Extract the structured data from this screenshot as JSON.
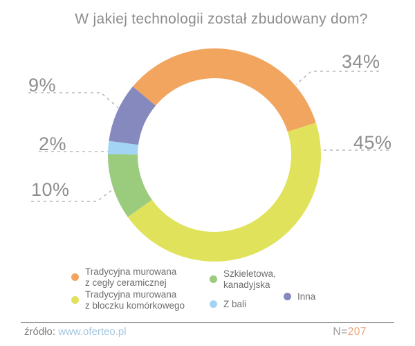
{
  "title": "W jakiej technologii został zbudowany dom?",
  "chart_data": {
    "type": "pie",
    "subtype": "donut",
    "title": "W jakiej technologii został zbudowany dom?",
    "unit": "%",
    "slices": [
      {
        "label": "Tradycyjna murowana z cegły ceramicznej",
        "value": 34,
        "pct_label": "34%",
        "color": "#F2A55E",
        "legend_lines": [
          "Tradycyjna murowana",
          "z cegły ceramicznej"
        ]
      },
      {
        "label": "Tradycyjna murowana z bloczku komórkowego",
        "value": 45,
        "pct_label": "45%",
        "color": "#E0E25B",
        "legend_lines": [
          "Tradycyjna murowana",
          "z bloczku komórkowego"
        ]
      },
      {
        "label": "Szkieletowa, kanadyjska",
        "value": 10,
        "pct_label": "10%",
        "color": "#9BCB7C",
        "legend_lines": [
          "Szkieletowa,",
          "kanadyjska"
        ]
      },
      {
        "label": "Z bali",
        "value": 2,
        "pct_label": "2%",
        "color": "#A3D4F3",
        "legend_lines": [
          "Z bali"
        ]
      },
      {
        "label": "Inna",
        "value": 9,
        "pct_label": "9%",
        "color": "#8689BE",
        "legend_lines": [
          "Inna"
        ]
      }
    ],
    "start_angle_deg": -50,
    "direction": "clockwise",
    "donut_hole_ratio": 0.72,
    "legend_position": "bottom",
    "leader_line_color": "#ababab",
    "total_n": 207
  },
  "footer": {
    "source_label": "źródło:",
    "source_link": "www.oferteo.pl",
    "n_label": "N=",
    "n_value": "207"
  }
}
